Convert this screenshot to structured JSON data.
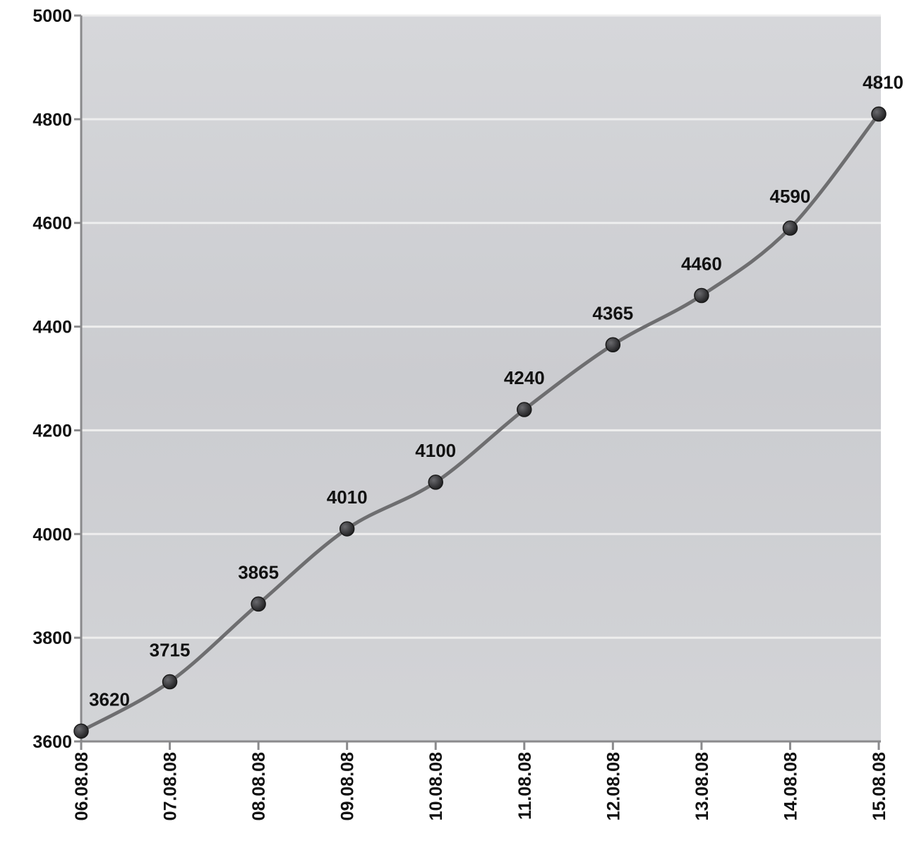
{
  "chart_data": {
    "type": "line",
    "title": "",
    "xlabel": "",
    "ylabel": "",
    "categories": [
      "06.08.08",
      "07.08.08",
      "08.08.08",
      "09.08.08",
      "10.08.08",
      "11.08.08",
      "12.08.08",
      "13.08.08",
      "14.08.08",
      "15.08.08"
    ],
    "series": [
      {
        "values": [
          3620,
          3715,
          3865,
          4010,
          4100,
          4240,
          4365,
          4460,
          4590,
          4810
        ]
      }
    ],
    "ylim": [
      3600,
      5000
    ],
    "yticks": [
      3600,
      3800,
      4000,
      4200,
      4400,
      4600,
      4800,
      5000
    ],
    "grid": true,
    "legend": "none",
    "colors": {
      "plot_bg": "#cfd0d3",
      "line": "#6e6e70",
      "marker": "#2a2a2c",
      "grid": "#eeeeee"
    }
  }
}
